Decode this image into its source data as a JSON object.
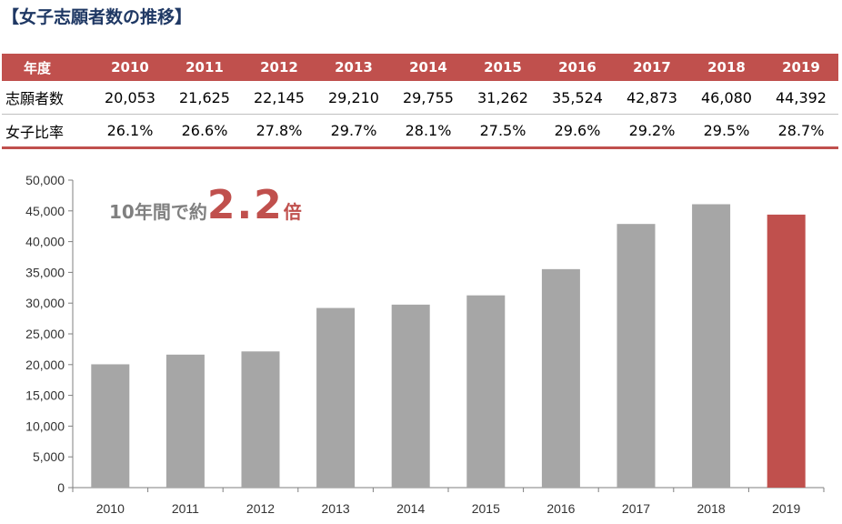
{
  "title": "【女子志願者数の推移】",
  "table": {
    "header_label": "年度",
    "years": [
      "2010",
      "2011",
      "2012",
      "2013",
      "2014",
      "2015",
      "2016",
      "2017",
      "2018",
      "2019"
    ],
    "rows": [
      {
        "label": "志願者数",
        "values": [
          "20,053",
          "21,625",
          "22,145",
          "29,210",
          "29,755",
          "31,262",
          "35,524",
          "42,873",
          "46,080",
          "44,392"
        ]
      },
      {
        "label": "女子比率",
        "values": [
          "26.1%",
          "26.6%",
          "27.8%",
          "29.7%",
          "28.1%",
          "27.5%",
          "29.6%",
          "29.2%",
          "29.5%",
          "28.7%"
        ]
      }
    ]
  },
  "annotation": {
    "prefix": "10年間で約",
    "value": "2.2",
    "suffix": "倍"
  },
  "chart_data": {
    "type": "bar",
    "categories": [
      "2010",
      "2011",
      "2012",
      "2013",
      "2014",
      "2015",
      "2016",
      "2017",
      "2018",
      "2019"
    ],
    "values": [
      20053,
      21625,
      22145,
      29210,
      29755,
      31262,
      35524,
      42873,
      46080,
      44392
    ],
    "ylim": [
      0,
      50000
    ],
    "yticks": [
      0,
      5000,
      10000,
      15000,
      20000,
      25000,
      30000,
      35000,
      40000,
      45000,
      50000
    ],
    "ytick_labels": [
      "0",
      "5,000",
      "10,000",
      "15,000",
      "20,000",
      "25,000",
      "30,000",
      "35,000",
      "40,000",
      "45,000",
      "50,000"
    ],
    "grid": false,
    "colors": {
      "default": "#a6a6a6",
      "highlight": "#c0504d"
    },
    "highlight_index": 9
  }
}
